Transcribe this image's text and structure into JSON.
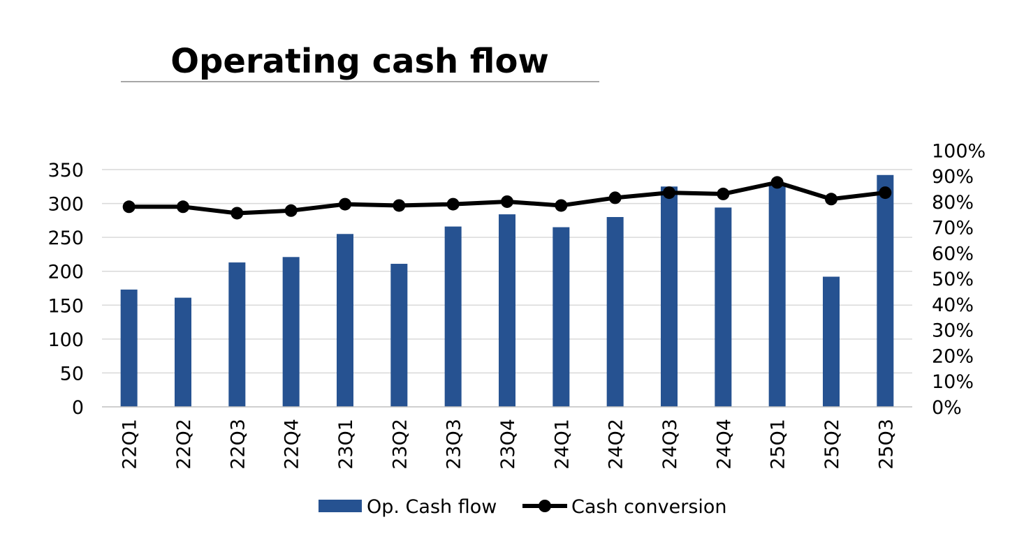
{
  "chart_data": {
    "type": "bar",
    "title": "Operating cash flow",
    "categories": [
      "22Q1",
      "22Q2",
      "22Q3",
      "22Q4",
      "23Q1",
      "23Q2",
      "23Q3",
      "23Q4",
      "24Q1",
      "24Q2",
      "24Q3",
      "24Q4",
      "25Q1",
      "25Q2",
      "25Q3"
    ],
    "series": [
      {
        "name": "Op. Cash flow",
        "type": "bar",
        "axis": "left",
        "color": "#265291",
        "values": [
          173,
          161,
          213,
          221,
          255,
          211,
          266,
          284,
          265,
          280,
          325,
          294,
          330,
          192,
          342
        ]
      },
      {
        "name": "Cash conversion",
        "type": "line",
        "axis": "right",
        "color": "#000000",
        "values": [
          0.78,
          0.78,
          0.755,
          0.765,
          0.79,
          0.785,
          0.79,
          0.8,
          0.785,
          0.815,
          0.835,
          0.83,
          0.875,
          0.81,
          0.835
        ]
      }
    ],
    "ylim": [
      0,
      350
    ],
    "yticks": [
      "0",
      "50",
      "100",
      "150",
      "200",
      "250",
      "300",
      "350"
    ],
    "y2lim": [
      0,
      1
    ],
    "y2ticks": [
      "0%",
      "10%",
      "20%",
      "30%",
      "40%",
      "50%",
      "60%",
      "70%",
      "80%",
      "90%",
      "100%"
    ],
    "xlabel": "",
    "ylabel": "",
    "grid": true,
    "legend_position": "bottom"
  }
}
